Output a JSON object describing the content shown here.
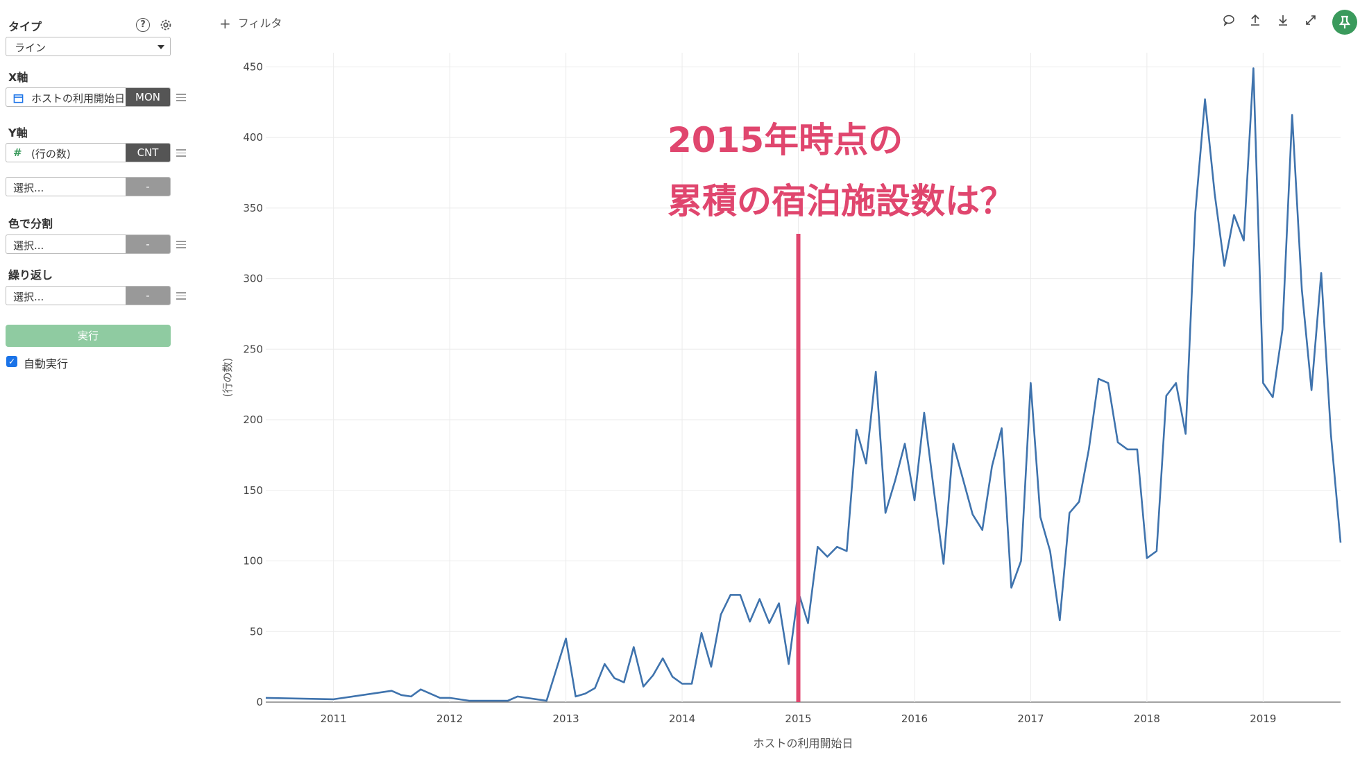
{
  "sidebar": {
    "type_label": "タイプ",
    "type_value": "ライン",
    "x_axis_label": "X軸",
    "x_field": "ホストの利用開始日",
    "x_agg": "MON",
    "y_axis_label": "Y軸",
    "y_field": "(行の数)",
    "y_agg": "CNT",
    "y_second_placeholder": "選択...",
    "y_second_agg": "-",
    "color_label": "色で分割",
    "color_placeholder": "選択...",
    "color_agg": "-",
    "repeat_label": "繰り返し",
    "repeat_placeholder": "選択...",
    "repeat_agg": "-",
    "run_label": "実行",
    "auto_run_label": "自動実行",
    "auto_run_checked": true
  },
  "toolbar": {
    "filter_label": "フィルタ",
    "icons": [
      "comment-icon",
      "upload-icon",
      "download-icon",
      "expand-icon",
      "pin-icon"
    ],
    "pin_color": "#3a9a5c"
  },
  "annotation": {
    "line1": "2015年時点の",
    "line2": "累積の宿泊施設数は？",
    "color": "#e0466e",
    "marker_x": "2015-01"
  },
  "chart_data": {
    "type": "line",
    "xlabel": "ホストの利用開始日",
    "ylabel": "(行の数)",
    "ylim": [
      0,
      460
    ],
    "yticks": [
      0,
      50,
      100,
      150,
      200,
      250,
      300,
      350,
      400,
      450
    ],
    "xticks": [
      "2011",
      "2012",
      "2013",
      "2014",
      "2015",
      "2016",
      "2017",
      "2018",
      "2019"
    ],
    "xlim": [
      "2010-06",
      "2019-09"
    ],
    "grid": true,
    "series": [
      {
        "color": "#3f73ad",
        "x": [
          "2010-06",
          "2011-01",
          "2011-07",
          "2011-08",
          "2011-09",
          "2011-10",
          "2011-12",
          "2012-01",
          "2012-03",
          "2012-07",
          "2012-08",
          "2012-11",
          "2013-01",
          "2013-02",
          "2013-03",
          "2013-04",
          "2013-05",
          "2013-06",
          "2013-07",
          "2013-08",
          "2013-09",
          "2013-10",
          "2013-11",
          "2013-12",
          "2014-01",
          "2014-02",
          "2014-03",
          "2014-04",
          "2014-05",
          "2014-06",
          "2014-07",
          "2014-08",
          "2014-09",
          "2014-10",
          "2014-11",
          "2014-12",
          "2015-01",
          "2015-02",
          "2015-03",
          "2015-04",
          "2015-05",
          "2015-06",
          "2015-07",
          "2015-08",
          "2015-09",
          "2015-10",
          "2015-11",
          "2015-12",
          "2016-01",
          "2016-02",
          "2016-03",
          "2016-04",
          "2016-05",
          "2016-06",
          "2016-07",
          "2016-08",
          "2016-09",
          "2016-10",
          "2016-11",
          "2016-12",
          "2017-01",
          "2017-02",
          "2017-03",
          "2017-04",
          "2017-05",
          "2017-06",
          "2017-07",
          "2017-08",
          "2017-09",
          "2017-10",
          "2017-11",
          "2017-12",
          "2018-01",
          "2018-02",
          "2018-03",
          "2018-04",
          "2018-05",
          "2018-06",
          "2018-07",
          "2018-08",
          "2018-09",
          "2018-10",
          "2018-11",
          "2018-12",
          "2019-01",
          "2019-02",
          "2019-03",
          "2019-04",
          "2019-05",
          "2019-06",
          "2019-07",
          "2019-08",
          "2019-09"
        ],
        "y": [
          3,
          2,
          8,
          5,
          4,
          9,
          3,
          3,
          1,
          1,
          4,
          1,
          45,
          4,
          6,
          10,
          27,
          17,
          14,
          39,
          11,
          19,
          31,
          18,
          13,
          13,
          49,
          25,
          62,
          76,
          76,
          57,
          73,
          56,
          70,
          27,
          78,
          56,
          110,
          103,
          110,
          107,
          193,
          169,
          234,
          134,
          157,
          183,
          143,
          205,
          150,
          98,
          183,
          158,
          133,
          122,
          167,
          194,
          81,
          100,
          226,
          131,
          107,
          58,
          134,
          142,
          179,
          229,
          226,
          184,
          179,
          179,
          102,
          107,
          217,
          226,
          190,
          347,
          427,
          360,
          309,
          345,
          327,
          449,
          226,
          216,
          264,
          416,
          292,
          221,
          304,
          190,
          113
        ]
      }
    ]
  }
}
